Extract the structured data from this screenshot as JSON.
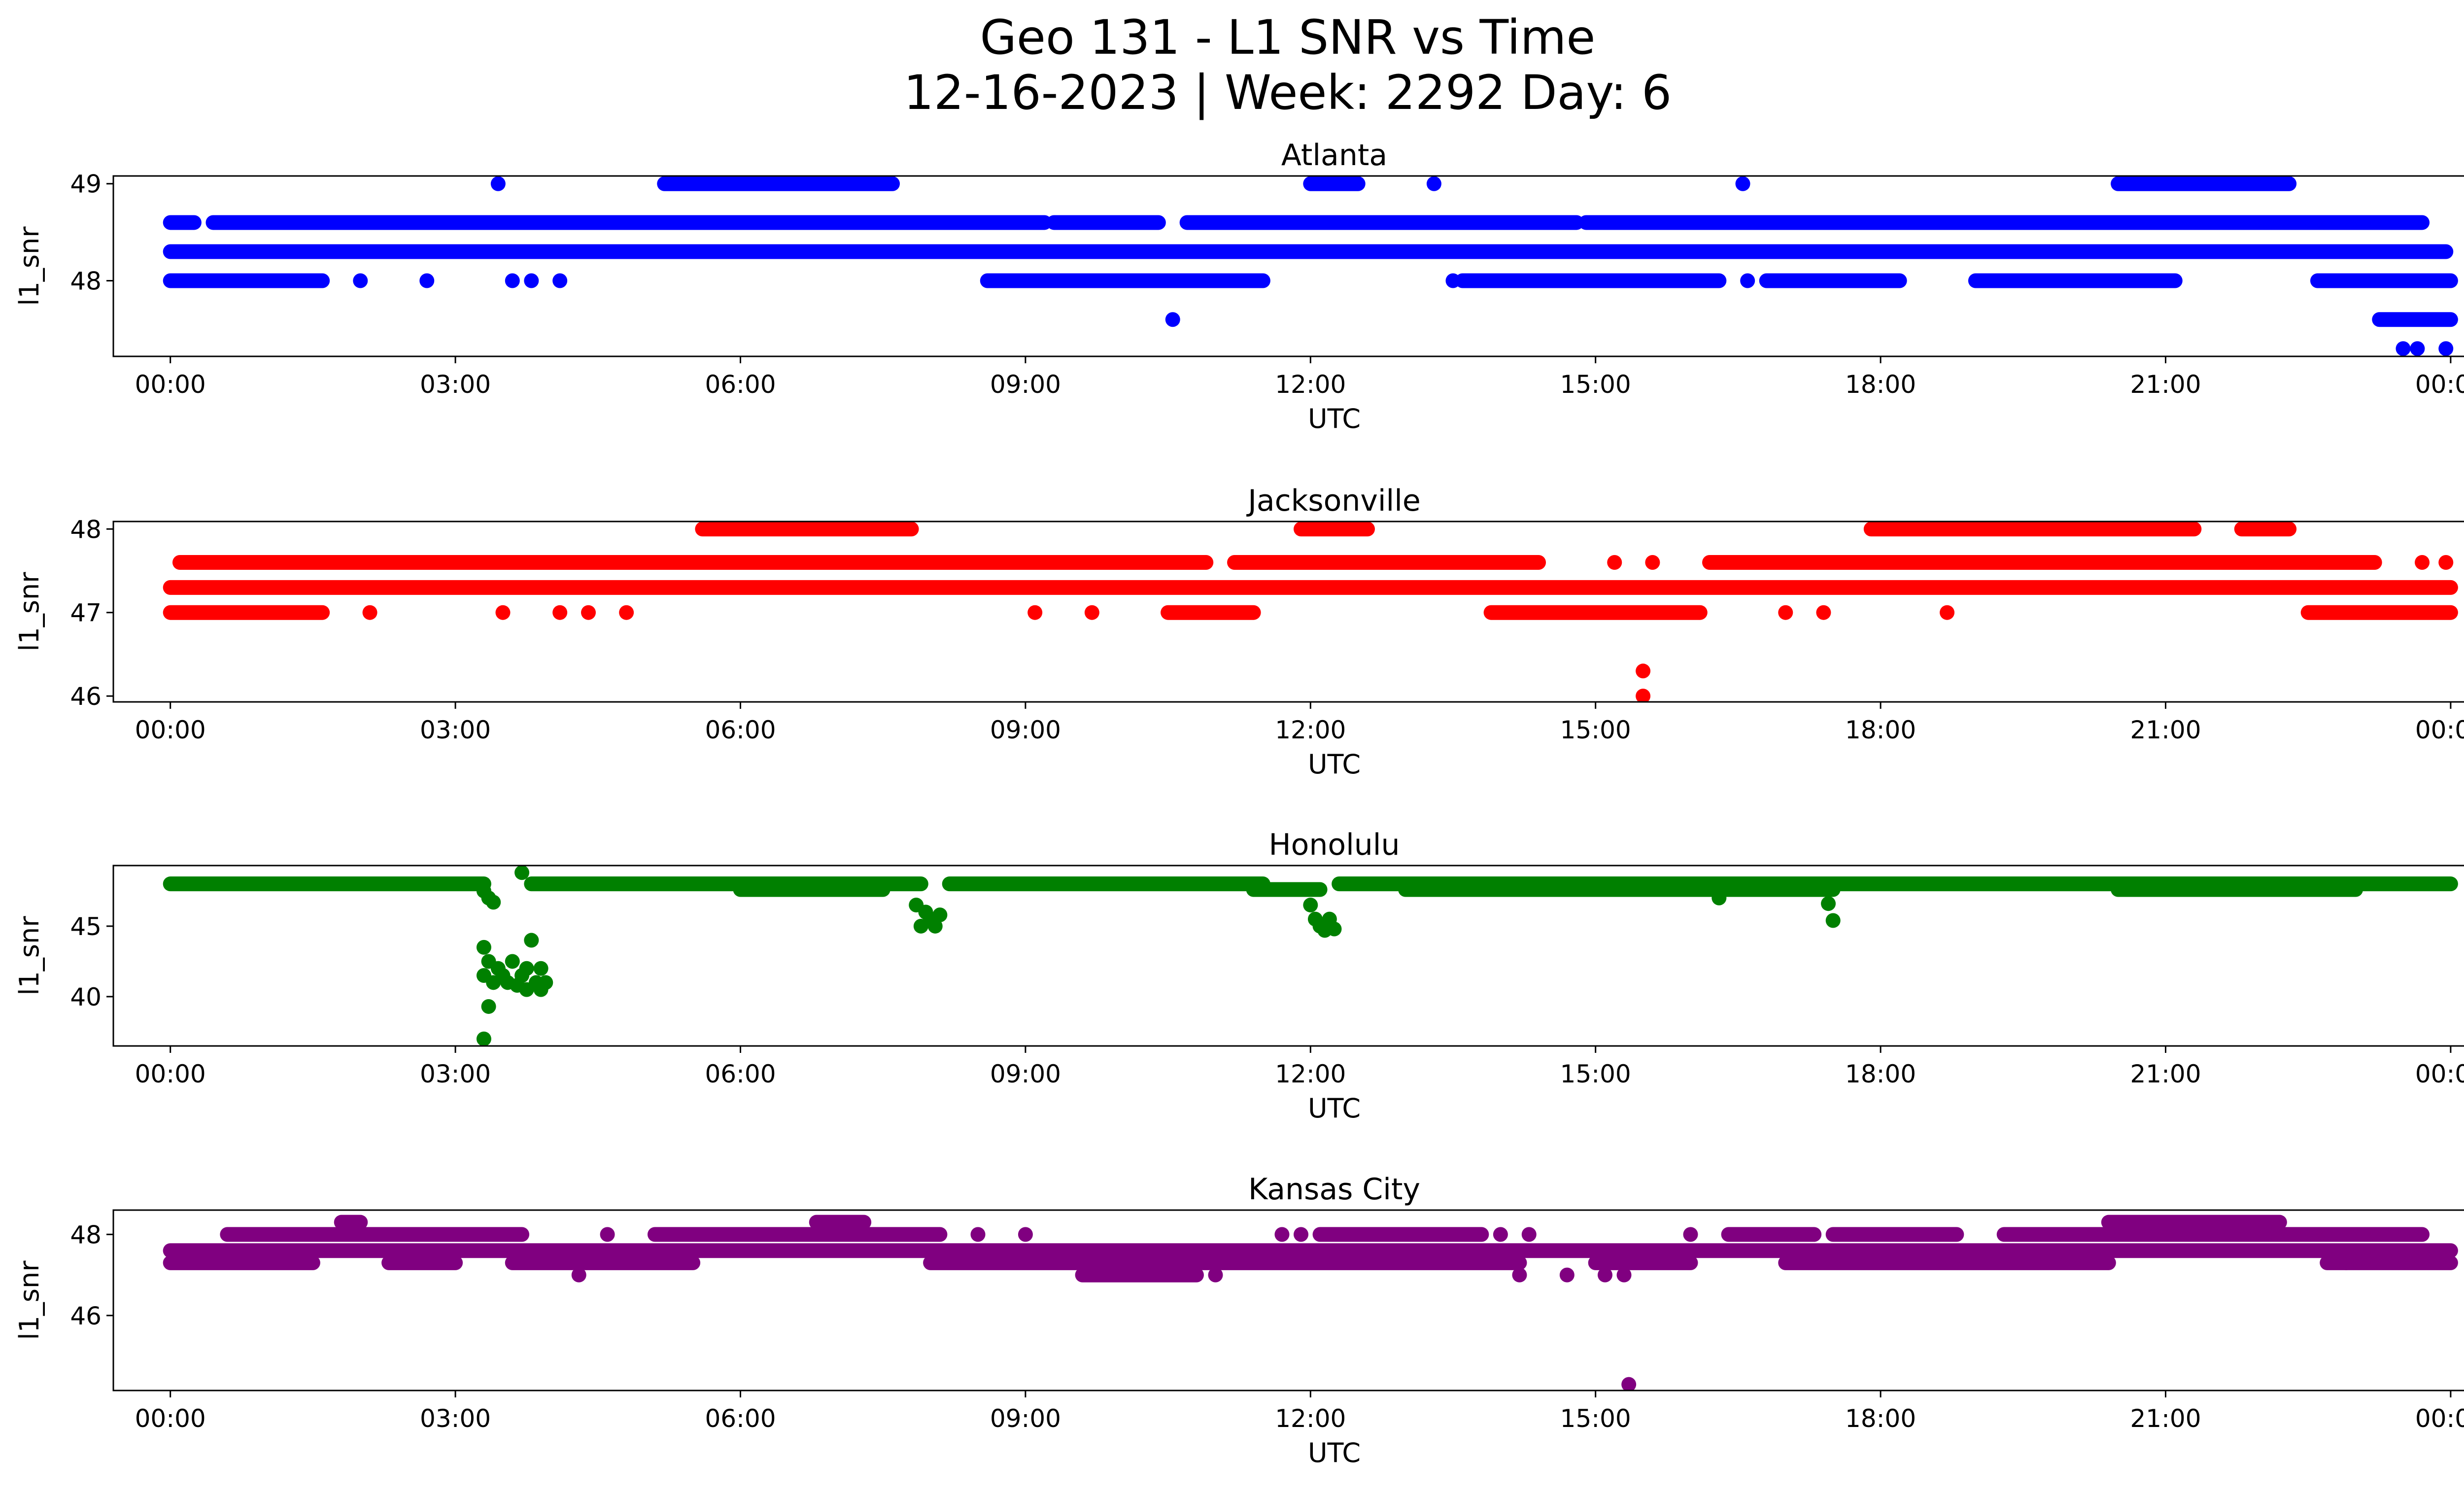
{
  "suptitle_line1": "Geo 131 - L1 SNR vs Time",
  "suptitle_line2": "12-16-2023 | Week: 2292 Day: 6",
  "chart_data": [
    {
      "type": "scatter",
      "title": "Atlanta",
      "xlabel": "UTC",
      "ylabel": "l1_snr",
      "color": "#0000ff",
      "xlim": [
        -0.6,
        25.1
      ],
      "ylim": [
        47.22,
        49.08
      ],
      "yticks": [
        48,
        49
      ],
      "xticks": [
        "00:00",
        "03:00",
        "06:00",
        "09:00",
        "12:00",
        "15:00",
        "18:00",
        "21:00",
        "00:00"
      ],
      "bands": [
        {
          "y": 48.3,
          "segments": [
            [
              0.0,
              23.95
            ]
          ]
        },
        {
          "y": 48.6,
          "segments": [
            [
              0.0,
              0.25
            ],
            [
              0.45,
              9.2
            ],
            [
              9.3,
              10.4
            ],
            [
              10.7,
              11.6
            ],
            [
              11.6,
              14.8
            ],
            [
              14.9,
              23.7
            ]
          ]
        },
        {
          "y": 48.0,
          "segments": [
            [
              0.0,
              1.6
            ],
            [
              8.6,
              11.5
            ],
            [
              13.6,
              16.3
            ],
            [
              16.8,
              18.2
            ],
            [
              19.0,
              21.1
            ],
            [
              22.6,
              24.0
            ]
          ]
        },
        {
          "y": 47.6,
          "segments": [
            [
              23.25,
              24.0
            ]
          ]
        },
        {
          "y": 49.0,
          "segments": [
            [
              5.2,
              7.6
            ],
            [
              12.0,
              12.5
            ],
            [
              20.5,
              22.3
            ]
          ]
        }
      ],
      "points": [
        {
          "x": 3.45,
          "y": 49.0
        },
        {
          "x": 13.3,
          "y": 49.0
        },
        {
          "x": 16.55,
          "y": 49.0
        },
        {
          "x": 2.0,
          "y": 48.0
        },
        {
          "x": 2.7,
          "y": 48.0
        },
        {
          "x": 3.6,
          "y": 48.0
        },
        {
          "x": 3.8,
          "y": 48.0
        },
        {
          "x": 4.1,
          "y": 48.0
        },
        {
          "x": 13.5,
          "y": 48.0
        },
        {
          "x": 16.6,
          "y": 48.0
        },
        {
          "x": 10.55,
          "y": 47.6
        },
        {
          "x": 23.5,
          "y": 47.3
        },
        {
          "x": 23.65,
          "y": 47.3
        },
        {
          "x": 23.95,
          "y": 47.3
        }
      ]
    },
    {
      "type": "scatter",
      "title": "Jacksonville",
      "xlabel": "UTC",
      "ylabel": "l1_snr",
      "color": "#ff0000",
      "xlim": [
        -0.6,
        25.1
      ],
      "ylim": [
        45.93,
        48.09
      ],
      "yticks": [
        46,
        47,
        48
      ],
      "xticks": [
        "00:00",
        "03:00",
        "06:00",
        "09:00",
        "12:00",
        "15:00",
        "18:00",
        "21:00",
        "00:00"
      ],
      "bands": [
        {
          "y": 47.3,
          "segments": [
            [
              0.0,
              24.0
            ]
          ]
        },
        {
          "y": 47.6,
          "segments": [
            [
              0.1,
              10.9
            ],
            [
              11.2,
              14.4
            ],
            [
              16.2,
              23.2
            ]
          ]
        },
        {
          "y": 47.0,
          "segments": [
            [
              0.0,
              1.6
            ],
            [
              10.5,
              11.4
            ],
            [
              13.9,
              16.1
            ],
            [
              22.5,
              24.0
            ]
          ]
        },
        {
          "y": 48.0,
          "segments": [
            [
              5.6,
              7.8
            ],
            [
              11.9,
              12.6
            ],
            [
              17.9,
              21.3
            ],
            [
              21.8,
              22.3
            ]
          ]
        }
      ],
      "points": [
        {
          "x": 2.1,
          "y": 47.0
        },
        {
          "x": 3.5,
          "y": 47.0
        },
        {
          "x": 4.1,
          "y": 47.0
        },
        {
          "x": 4.4,
          "y": 47.0
        },
        {
          "x": 4.8,
          "y": 47.0
        },
        {
          "x": 9.1,
          "y": 47.0
        },
        {
          "x": 9.7,
          "y": 47.0
        },
        {
          "x": 17.0,
          "y": 47.0
        },
        {
          "x": 17.4,
          "y": 47.0
        },
        {
          "x": 18.7,
          "y": 47.0
        },
        {
          "x": 15.2,
          "y": 47.6
        },
        {
          "x": 15.6,
          "y": 47.6
        },
        {
          "x": 23.7,
          "y": 47.6
        },
        {
          "x": 23.95,
          "y": 47.6
        },
        {
          "x": 15.5,
          "y": 46.3
        },
        {
          "x": 15.5,
          "y": 46.0
        }
      ]
    },
    {
      "type": "scatter",
      "title": "Honolulu",
      "xlabel": "UTC",
      "ylabel": "l1_snr",
      "color": "#008000",
      "xlim": [
        -0.6,
        25.1
      ],
      "ylim": [
        36.5,
        49.3
      ],
      "yticks": [
        40,
        45
      ],
      "xticks": [
        "00:00",
        "03:00",
        "06:00",
        "09:00",
        "12:00",
        "15:00",
        "18:00",
        "21:00",
        "00:00"
      ],
      "bands": [
        {
          "y": 48.0,
          "segments": [
            [
              0.0,
              3.3
            ],
            [
              3.8,
              7.9
            ],
            [
              8.2,
              11.5
            ],
            [
              12.3,
              24.0
            ]
          ]
        },
        {
          "y": 47.6,
          "segments": [
            [
              6.0,
              7.5
            ],
            [
              11.4,
              12.1
            ],
            [
              13.0,
              17.5
            ],
            [
              20.5,
              23.0
            ]
          ]
        }
      ],
      "points": [
        {
          "x": 3.3,
          "y": 47.5
        },
        {
          "x": 3.35,
          "y": 47.0
        },
        {
          "x": 3.4,
          "y": 46.7
        },
        {
          "x": 3.3,
          "y": 43.5
        },
        {
          "x": 3.35,
          "y": 42.5
        },
        {
          "x": 3.3,
          "y": 41.5
        },
        {
          "x": 3.4,
          "y": 41.0
        },
        {
          "x": 3.35,
          "y": 39.3
        },
        {
          "x": 3.3,
          "y": 37.0
        },
        {
          "x": 3.45,
          "y": 42.0
        },
        {
          "x": 3.5,
          "y": 41.5
        },
        {
          "x": 3.55,
          "y": 41.0
        },
        {
          "x": 3.6,
          "y": 42.5
        },
        {
          "x": 3.65,
          "y": 40.8
        },
        {
          "x": 3.7,
          "y": 41.5
        },
        {
          "x": 3.75,
          "y": 42.0
        },
        {
          "x": 3.8,
          "y": 44.0
        },
        {
          "x": 3.85,
          "y": 41.0
        },
        {
          "x": 3.9,
          "y": 40.5
        },
        {
          "x": 3.95,
          "y": 41.0
        },
        {
          "x": 3.9,
          "y": 42.0
        },
        {
          "x": 3.75,
          "y": 40.5
        },
        {
          "x": 3.7,
          "y": 48.8
        },
        {
          "x": 7.85,
          "y": 46.5
        },
        {
          "x": 7.9,
          "y": 45.0
        },
        {
          "x": 8.0,
          "y": 45.5
        },
        {
          "x": 8.05,
          "y": 45.0
        },
        {
          "x": 8.1,
          "y": 45.8
        },
        {
          "x": 7.95,
          "y": 46.0
        },
        {
          "x": 12.0,
          "y": 46.5
        },
        {
          "x": 12.05,
          "y": 45.5
        },
        {
          "x": 12.1,
          "y": 45.0
        },
        {
          "x": 12.15,
          "y": 44.7
        },
        {
          "x": 12.2,
          "y": 45.5
        },
        {
          "x": 12.25,
          "y": 44.8
        },
        {
          "x": 16.3,
          "y": 47.0
        },
        {
          "x": 17.45,
          "y": 46.6
        },
        {
          "x": 17.5,
          "y": 45.4
        }
      ]
    },
    {
      "type": "scatter",
      "title": "Kansas City",
      "xlabel": "UTC",
      "ylabel": "l1_snr",
      "color": "#800080",
      "xlim": [
        -0.6,
        25.1
      ],
      "ylim": [
        44.15,
        48.6
      ],
      "yticks": [
        46,
        48
      ],
      "xticks": [
        "00:00",
        "03:00",
        "06:00",
        "09:00",
        "12:00",
        "15:00",
        "18:00",
        "21:00",
        "00:00"
      ],
      "bands": [
        {
          "y": 47.6,
          "segments": [
            [
              0.0,
              24.0
            ]
          ]
        },
        {
          "y": 47.3,
          "segments": [
            [
              0.0,
              1.5
            ],
            [
              2.3,
              3.0
            ],
            [
              3.6,
              5.5
            ],
            [
              8.0,
              14.2
            ],
            [
              15.0,
              16.0
            ],
            [
              17.0,
              20.4
            ],
            [
              22.7,
              24.0
            ]
          ]
        },
        {
          "y": 48.0,
          "segments": [
            [
              0.6,
              3.7
            ],
            [
              5.1,
              8.1
            ],
            [
              12.1,
              13.8
            ],
            [
              16.4,
              17.3
            ],
            [
              17.5,
              18.8
            ],
            [
              19.3,
              23.7
            ]
          ]
        },
        {
          "y": 48.3,
          "segments": [
            [
              1.8,
              2.0
            ],
            [
              6.8,
              7.3
            ],
            [
              20.4,
              22.2
            ]
          ]
        },
        {
          "y": 47.0,
          "segments": [
            [
              9.6,
              10.8
            ]
          ]
        }
      ],
      "points": [
        {
          "x": 4.3,
          "y": 47.0
        },
        {
          "x": 4.6,
          "y": 48.0
        },
        {
          "x": 8.5,
          "y": 48.0
        },
        {
          "x": 9.0,
          "y": 48.0
        },
        {
          "x": 11.0,
          "y": 47.0
        },
        {
          "x": 14.2,
          "y": 47.0
        },
        {
          "x": 14.7,
          "y": 47.0
        },
        {
          "x": 15.1,
          "y": 47.0
        },
        {
          "x": 15.3,
          "y": 47.0
        },
        {
          "x": 11.7,
          "y": 48.0
        },
        {
          "x": 11.9,
          "y": 48.0
        },
        {
          "x": 14.0,
          "y": 48.0
        },
        {
          "x": 14.3,
          "y": 48.0
        },
        {
          "x": 16.0,
          "y": 48.0
        },
        {
          "x": 22.9,
          "y": 47.3
        },
        {
          "x": 15.35,
          "y": 44.3
        }
      ]
    }
  ]
}
